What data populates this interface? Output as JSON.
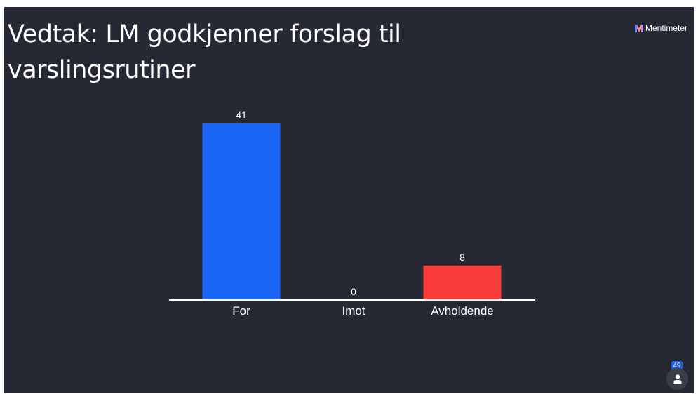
{
  "slide": {
    "title": "Vedtak: LM godkjenner forslag til varslingsrutiner"
  },
  "brand": {
    "name": "Mentimeter",
    "icon": "mentimeter-logo-icon"
  },
  "participants": {
    "count": "49",
    "icon": "user-icon"
  },
  "colors": {
    "background": "#262833",
    "text": "#ffffff",
    "for": "#1b66f7",
    "imot": "#2b2d38",
    "avholdende": "#f93d3b"
  },
  "chart_data": {
    "type": "bar",
    "categories": [
      "For",
      "Imot",
      "Avholdende"
    ],
    "values": [
      41,
      0,
      8
    ],
    "colors": [
      "#1b66f7",
      "#2b2d38",
      "#f93d3b"
    ],
    "value_labels": [
      "41",
      "0",
      "8"
    ],
    "title": "Vedtak: LM godkjenner forslag til varslingsrutiner",
    "xlabel": "",
    "ylabel": "",
    "ylim": [
      0,
      41
    ],
    "grid": false,
    "legend": "none"
  }
}
